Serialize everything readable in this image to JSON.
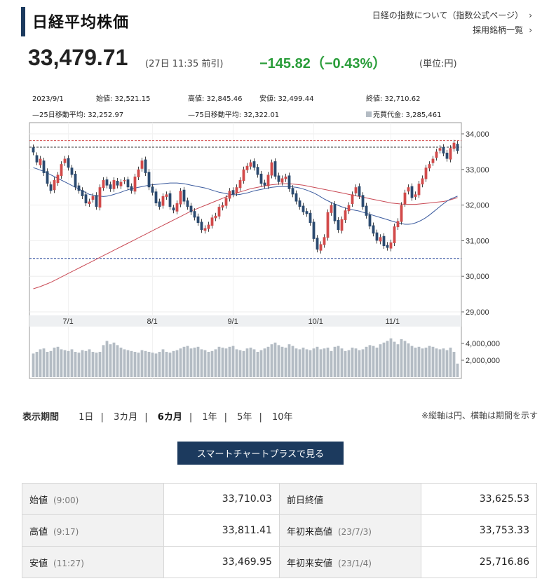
{
  "header": {
    "title": "日経平均株価",
    "link1": "日経の指数について（指数公式ページ）",
    "link2": "採用銘柄一覧"
  },
  "quote": {
    "price": "33,479.71",
    "time": "(27日 11:35 前引)",
    "change": "−145.82（−0.43%）",
    "unit": "(単位:円)"
  },
  "chart_info": {
    "date": "2023/9/1",
    "open": "始値: 32,521.15",
    "high": "高値: 32,845.46",
    "low": "安値: 32,499.44",
    "close": "終値: 32,710.62",
    "ma25": "—25日移動平均: 32,252.97",
    "ma75": "—75日移動平均: 32,322.01",
    "turnover": "売買代金: 3,285,461"
  },
  "chart_data": {
    "type": "candlestick",
    "x_labels": [
      "7/1",
      "8/1",
      "9/1",
      "10/1",
      "11/1"
    ],
    "y_ticks": [
      "34,000",
      "33,000",
      "32,000",
      "31,000",
      "30,000",
      "29,000"
    ],
    "ylim": [
      29000,
      34000
    ],
    "volume_ticks": [
      "4,000,000",
      "2,000,000"
    ],
    "reference_lines": {
      "high_red": 33811,
      "prev_black": 33625,
      "low_blue": 30500
    },
    "colors": {
      "up": "#d24a4a",
      "down": "#2b4a6f",
      "ma25": "#3a5a9e",
      "ma75": "#c94a55",
      "volume": "#b4bcc4"
    },
    "closes": [
      33480,
      33200,
      33300,
      32900,
      32600,
      32400,
      32700,
      32850,
      33150,
      33300,
      33050,
      32850,
      32500,
      32400,
      32250,
      32050,
      32100,
      32250,
      31950,
      32500,
      32700,
      32550,
      32450,
      32700,
      32550,
      32650,
      32700,
      32500,
      32400,
      32800,
      33000,
      33250,
      32900,
      32500,
      32350,
      32050,
      31950,
      32250,
      32300,
      31950,
      31850,
      32050,
      32400,
      32100,
      31950,
      31800,
      31650,
      31500,
      31300,
      31350,
      31450,
      31650,
      31700,
      31950,
      32000,
      32200,
      32400,
      32300,
      32500,
      32700,
      33000,
      33100,
      33200,
      33050,
      32850,
      32600,
      32550,
      32850,
      33200,
      32800,
      32650,
      32750,
      32800,
      32450,
      32300,
      32100,
      31950,
      31800,
      31750,
      31500,
      31050,
      30750,
      30900,
      31100,
      31800,
      32000,
      31550,
      31300,
      31600,
      31850,
      32000,
      32300,
      32500,
      32250,
      31950,
      31700,
      31400,
      31200,
      31000,
      31100,
      30850,
      30800,
      30950,
      31400,
      31550,
      32000,
      32350,
      32500,
      32200,
      32300,
      32600,
      32750,
      33050,
      33150,
      33300,
      33500,
      33600,
      33450,
      33300,
      33600,
      33750,
      33520
    ],
    "opens": [
      33620,
      33400,
      33120,
      33250,
      32950,
      32580,
      32420,
      32620,
      32820,
      33180,
      33320,
      33050,
      32880,
      32550,
      32420,
      32300,
      32030,
      32150,
      32280,
      31930,
      32480,
      32720,
      32580,
      32450,
      32680,
      32530,
      32670,
      32720,
      32530,
      32380,
      32780,
      33020,
      33280,
      32930,
      32520,
      32380,
      32100,
      31980,
      32230,
      32330,
      31930,
      31820,
      32020,
      32430,
      32130,
      31980,
      31830,
      31680,
      31530,
      31280,
      31330,
      31420,
      31630,
      31680,
      31930,
      31980,
      32180,
      32420,
      32330,
      32480,
      32680,
      32980,
      33080,
      33230,
      33070,
      32880,
      32630,
      32530,
      32830,
      33230,
      32830,
      32630,
      32730,
      32830,
      32480,
      32330,
      32130,
      31980,
      31830,
      31780,
      31530,
      31080,
      30720,
      30880,
      31080,
      31780,
      32030,
      31580,
      31280,
      31580,
      31830,
      32030,
      32330,
      32530,
      32280,
      31980,
      31730,
      31430,
      31230,
      30980,
      31130,
      30880,
      30780,
      30930,
      31380,
      31530,
      32030,
      32380,
      32530,
      32230,
      32280,
      32580,
      32730,
      33030,
      33180,
      33330,
      33530,
      33630,
      33470,
      33280,
      33580,
      33720
    ],
    "ma25": [
      33050,
      33020,
      32980,
      32950,
      32900,
      32850,
      32800,
      32750,
      32700,
      32650,
      32600,
      32550,
      32500,
      32450,
      32400,
      32350,
      32300,
      32280,
      32260,
      32250,
      32240,
      32250,
      32270,
      32300,
      32330,
      32360,
      32400,
      32430,
      32460,
      32480,
      32500,
      32520,
      32540,
      32560,
      32570,
      32580,
      32590,
      32600,
      32610,
      32620,
      32620,
      32620,
      32610,
      32600,
      32580,
      32560,
      32540,
      32520,
      32500,
      32480,
      32450,
      32420,
      32390,
      32360,
      32340,
      32320,
      32300,
      32290,
      32290,
      32300,
      32320,
      32340,
      32370,
      32400,
      32420,
      32440,
      32460,
      32480,
      32500,
      32510,
      32520,
      32520,
      32520,
      32520,
      32510,
      32500,
      32480,
      32450,
      32420,
      32380,
      32340,
      32290,
      32230,
      32170,
      32120,
      32070,
      32030,
      31990,
      31950,
      31920,
      31890,
      31870,
      31850,
      31830,
      31800,
      31770,
      31740,
      31710,
      31680,
      31650,
      31620,
      31590,
      31560,
      31530,
      31500,
      31480,
      31460,
      31460,
      31470,
      31500,
      31540,
      31590,
      31650,
      31720,
      31800,
      31880,
      31960,
      32040,
      32110,
      32170,
      32210,
      32250
    ],
    "ma75": [
      29650,
      29680,
      29710,
      29750,
      29790,
      29830,
      29880,
      29930,
      29980,
      30030,
      30080,
      30130,
      30180,
      30230,
      30280,
      30330,
      30380,
      30430,
      30480,
      30530,
      30580,
      30630,
      30680,
      30730,
      30780,
      30830,
      30880,
      30930,
      30980,
      31030,
      31080,
      31130,
      31180,
      31230,
      31280,
      31330,
      31380,
      31430,
      31480,
      31530,
      31580,
      31630,
      31680,
      31730,
      31780,
      31830,
      31870,
      31910,
      31950,
      31990,
      32030,
      32070,
      32110,
      32150,
      32190,
      32230,
      32270,
      32310,
      32340,
      32370,
      32400,
      32430,
      32460,
      32480,
      32500,
      32520,
      32540,
      32560,
      32570,
      32580,
      32590,
      32600,
      32600,
      32600,
      32590,
      32580,
      32570,
      32560,
      32540,
      32520,
      32500,
      32480,
      32460,
      32440,
      32420,
      32400,
      32380,
      32360,
      32340,
      32320,
      32300,
      32280,
      32260,
      32240,
      32220,
      32200,
      32180,
      32160,
      32140,
      32120,
      32100,
      32080,
      32060,
      32050,
      32040,
      32030,
      32020,
      32020,
      32020,
      32020,
      32030,
      32040,
      32050,
      32060,
      32070,
      32080,
      32090,
      32100,
      32120,
      32150,
      32180,
      32210
    ],
    "volume": [
      2800000,
      3000000,
      3300000,
      3400000,
      3000000,
      3100000,
      3500000,
      3600000,
      3300000,
      3200000,
      3100000,
      3300000,
      3000000,
      2900000,
      3200000,
      3100000,
      3300000,
      3000000,
      2900000,
      3000000,
      3800000,
      4300000,
      3900000,
      4100000,
      3800000,
      3500000,
      3300000,
      3200000,
      3100000,
      3000000,
      2900000,
      3200000,
      3100000,
      3000000,
      2900000,
      2800000,
      3000000,
      3300000,
      3000000,
      2900000,
      3100000,
      3200000,
      3400000,
      3600000,
      3700000,
      3400000,
      3500000,
      3600000,
      3300000,
      3200000,
      3000000,
      3100000,
      3300000,
      3600000,
      3500000,
      3400000,
      3600000,
      3700000,
      3300000,
      3200000,
      3100000,
      3400000,
      3500000,
      3300000,
      3000000,
      3200000,
      3400000,
      3600000,
      3900000,
      4100000,
      3800000,
      3600000,
      3500000,
      3900000,
      3700000,
      3400000,
      3300000,
      3500000,
      3300000,
      3200000,
      3400000,
      3600000,
      3300000,
      3400000,
      3500000,
      3100000,
      3600000,
      3700000,
      3400000,
      3100000,
      3200000,
      3500000,
      3400000,
      3200000,
      3300000,
      3600000,
      3800000,
      3700000,
      3500000,
      3900000,
      4100000,
      4300000,
      4600000,
      4200000,
      3900000,
      4500000,
      4300000,
      4000000,
      3700000,
      3500000,
      3600000,
      3400000,
      3500000,
      3700000,
      3600000,
      3400000,
      3300000,
      3400000,
      3200000,
      3500000,
      3000000,
      1600000
    ]
  },
  "period": {
    "label": "表示期間",
    "options": [
      "1日",
      "3カ月",
      "6カ月",
      "1年",
      "5年",
      "10年"
    ],
    "selected": "6カ月",
    "note": "※縦軸は円、横軸は期間を示す"
  },
  "button": {
    "label": "スマートチャートプラスで見る"
  },
  "stats": [
    {
      "k1": "始値",
      "s1": "(9:00)",
      "v1": "33,710.03",
      "k2": "前日終値",
      "s2": "",
      "v2": "33,625.53"
    },
    {
      "k1": "高値",
      "s1": "(9:17)",
      "v1": "33,811.41",
      "k2": "年初来高値",
      "s2": "(23/7/3)",
      "v2": "33,753.33"
    },
    {
      "k1": "安値",
      "s1": "(11:27)",
      "v1": "33,469.95",
      "k2": "年初来安値",
      "s2": "(23/1/4)",
      "v2": "25,716.86"
    }
  ]
}
